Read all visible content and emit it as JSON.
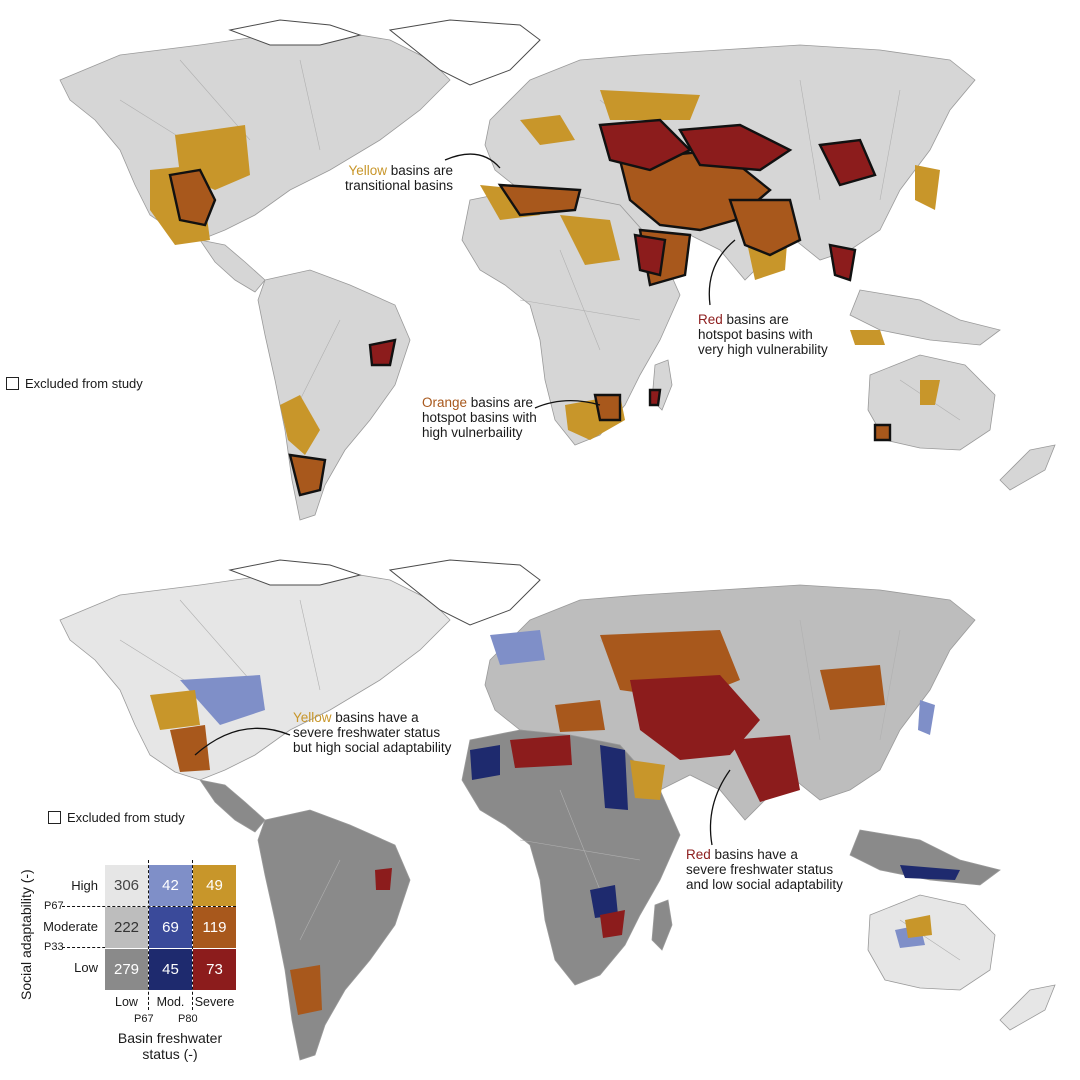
{
  "colors": {
    "land_grey": "#d6d6d6",
    "yellow": "#c8962a",
    "orange": "#a8581c",
    "red": "#8c1c1c",
    "low_high": "#e6e6e6",
    "low_mod": "#bdbdbd",
    "low_low": "#8a8a8a",
    "mod_high": "#7f8fc8",
    "mod_mod": "#3a4a9a",
    "mod_low": "#1e2a6e",
    "sev_high": "#c8962a",
    "sev_mod": "#a8581c",
    "sev_low": "#8c1c1c"
  },
  "top_map": {
    "excluded_label": "Excluded from study",
    "annotations": [
      {
        "colored": "Yellow",
        "rest1": " basins are",
        "line2": "transitional basins",
        "line3": "",
        "tone": "yellow"
      },
      {
        "colored": "Red",
        "rest1": " basins are",
        "line2": "hotspot basins with",
        "line3": "very high vulnerability",
        "tone": "red"
      },
      {
        "colored": "Orange",
        "rest1": " basins are",
        "line2": "hotspot basins with",
        "line3": "high vulnerbaility",
        "tone": "orange"
      }
    ]
  },
  "bottom_map": {
    "excluded_label": "Excluded from study",
    "annotations": [
      {
        "colored": "Yellow",
        "rest1": " basins have a",
        "line2": "severe freshwater status",
        "line3": "but high social adaptability",
        "tone": "yellow"
      },
      {
        "colored": "Red",
        "rest1": " basins have a",
        "line2": "severe freshwater status",
        "line3": "and low social adaptability",
        "tone": "red"
      }
    ]
  },
  "legend": {
    "y_axis_label": "Social adaptability (-)",
    "x_axis_label_line1": "Basin freshwater",
    "x_axis_label_line2": "status (-)",
    "rows": [
      "High",
      "Moderate",
      "Low"
    ],
    "cols": [
      "Low",
      "Mod.",
      "Severe"
    ],
    "row_thresholds": [
      "P67",
      "P33"
    ],
    "col_thresholds": [
      "P67",
      "P80"
    ],
    "counts": [
      [
        "306",
        "42",
        "49"
      ],
      [
        "222",
        "69",
        "119"
      ],
      [
        "279",
        "45",
        "73"
      ]
    ]
  }
}
